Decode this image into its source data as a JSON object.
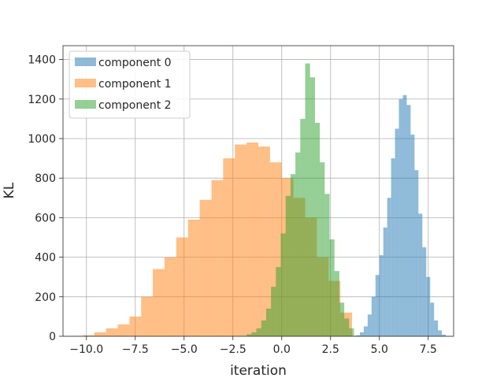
{
  "chart_data": {
    "type": "bar",
    "title": "",
    "xlabel": "iteration",
    "ylabel": "KL",
    "xlim": [
      -11.2,
      8.8
    ],
    "ylim": [
      0,
      1470
    ],
    "xticks": [
      -10.0,
      -7.5,
      -5.0,
      -2.5,
      0.0,
      2.5,
      5.0,
      7.5
    ],
    "xtick_labels": [
      "−10.0",
      "−7.5",
      "−5.0",
      "−2.5",
      "0.0",
      "2.5",
      "5.0",
      "7.5"
    ],
    "yticks": [
      0,
      200,
      400,
      600,
      800,
      1000,
      1200,
      1400
    ],
    "ytick_labels": [
      "0",
      "200",
      "400",
      "600",
      "800",
      "1000",
      "1200",
      "1400"
    ],
    "grid": true,
    "legend_position": "top-left",
    "series": [
      {
        "name": "component 0",
        "color": "#1f77b4",
        "opacity": 0.5,
        "bin_start": 3.8,
        "bin_width": 0.2,
        "values": [
          5,
          20,
          50,
          110,
          200,
          310,
          410,
          550,
          700,
          900,
          1050,
          1200,
          1220,
          1170,
          1020,
          840,
          620,
          450,
          300,
          170,
          80,
          30,
          8
        ]
      },
      {
        "name": "component 1",
        "color": "#ff7f0e",
        "opacity": 0.5,
        "bin_start": -10.2,
        "bin_width": 0.6,
        "values": [
          5,
          20,
          40,
          60,
          100,
          200,
          340,
          400,
          500,
          590,
          690,
          790,
          900,
          970,
          980,
          960,
          880,
          800,
          700,
          600,
          400,
          280,
          120
        ]
      },
      {
        "name": "component 2",
        "color": "#2ca02c",
        "opacity": 0.5,
        "bin_start": -1.8,
        "bin_width": 0.25,
        "values": [
          10,
          20,
          40,
          80,
          140,
          250,
          350,
          520,
          710,
          820,
          930,
          1100,
          1380,
          1310,
          1080,
          880,
          720,
          490,
          330,
          170,
          90,
          40
        ]
      }
    ]
  }
}
